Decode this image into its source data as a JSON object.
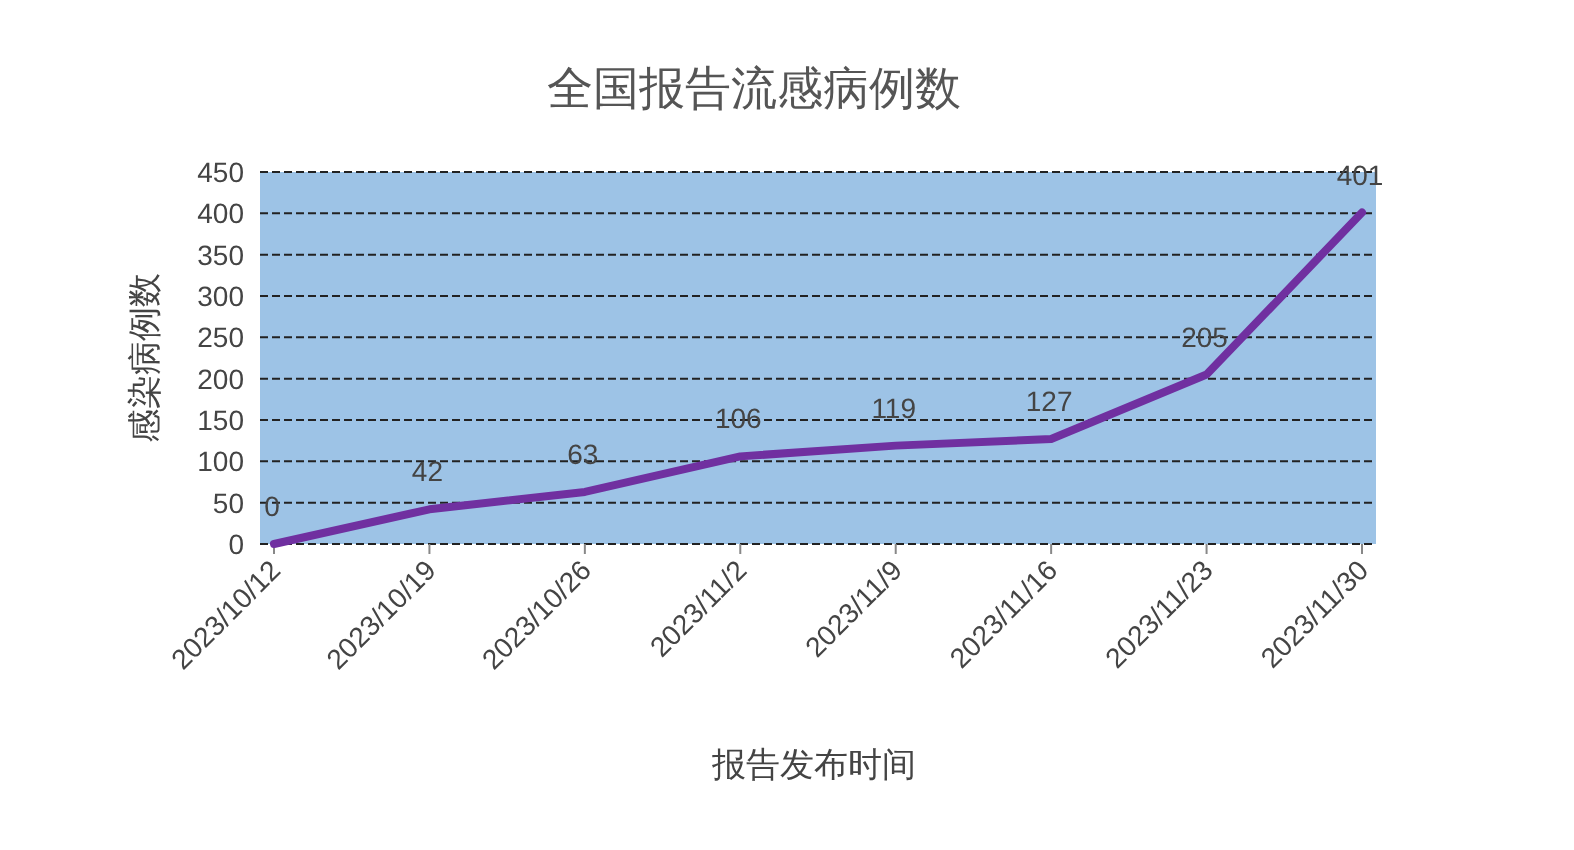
{
  "chart_data": {
    "type": "line",
    "title": "全国报告流感病例数",
    "xlabel": "报告发布时间",
    "ylabel": "感染病例数",
    "categories": [
      "2023/10/12",
      "2023/10/19",
      "2023/10/26",
      "2023/11/2",
      "2023/11/9",
      "2023/11/16",
      "2023/11/23",
      "2023/11/30"
    ],
    "series": [
      {
        "color": "#7030a0",
        "values": [
          0,
          42,
          63,
          106,
          119,
          127,
          205,
          401
        ]
      }
    ],
    "ylim": [
      0,
      450
    ],
    "yticks": [
      0,
      50,
      100,
      150,
      200,
      250,
      300,
      350,
      400,
      450
    ],
    "grid": "y",
    "data_labels": true
  }
}
